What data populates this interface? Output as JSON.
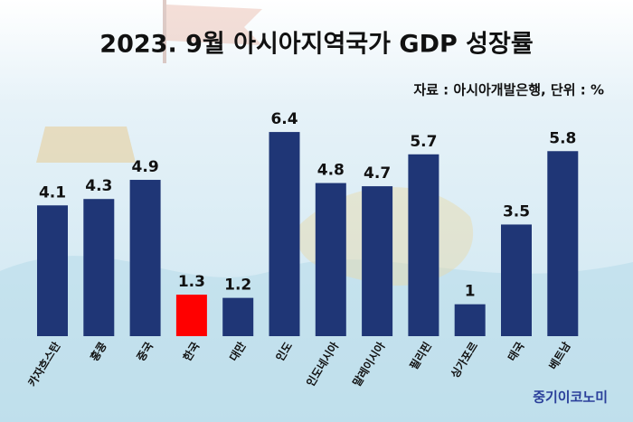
{
  "chart_data": {
    "type": "bar",
    "title": "2023. 9월 아시아지역국가 GDP 성장률",
    "subtitle": "자료 : 아시아개발은행, 단위 : %",
    "source": "중기이코노미",
    "categories": [
      "카자흐스탄",
      "홍콩",
      "중국",
      "한국",
      "대만",
      "인도",
      "인도네시아",
      "말레이시아",
      "필리핀",
      "싱가포르",
      "태국",
      "베트남"
    ],
    "values": [
      4.1,
      4.3,
      4.9,
      1.3,
      1.2,
      6.4,
      4.8,
      4.7,
      5.7,
      1,
      3.5,
      5.8
    ],
    "colors": [
      "#1f3676",
      "#1f3676",
      "#1f3676",
      "#ff0000",
      "#1f3676",
      "#1f3676",
      "#1f3676",
      "#1f3676",
      "#1f3676",
      "#1f3676",
      "#1f3676",
      "#1f3676"
    ]
  }
}
